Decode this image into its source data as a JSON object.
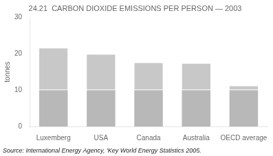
{
  "chart_data": {
    "type": "bar",
    "title": "24.21  CARBON DIOXIDE EMISSIONS PER PERSON — 2003",
    "y_label": "tonnes",
    "annotations": [
      "Source: International Energy Agency, 'Key World Energy Statistics 2005."
    ],
    "categories": [
      "Luxemberg",
      "USA",
      "Canada",
      "Australia",
      "OECD average"
    ],
    "series": [
      {
        "color": "#b8b8b8",
        "values": [
          10,
          10,
          10,
          10,
          10
        ]
      },
      {
        "color": "#c8c8c8",
        "values": [
          11.5,
          9.8,
          7.5,
          7.3,
          1.1
        ]
      }
    ],
    "stacked": true,
    "ylim": [
      0,
      30
    ],
    "yticks": [
      0,
      10,
      20,
      30
    ],
    "grid": false
  }
}
